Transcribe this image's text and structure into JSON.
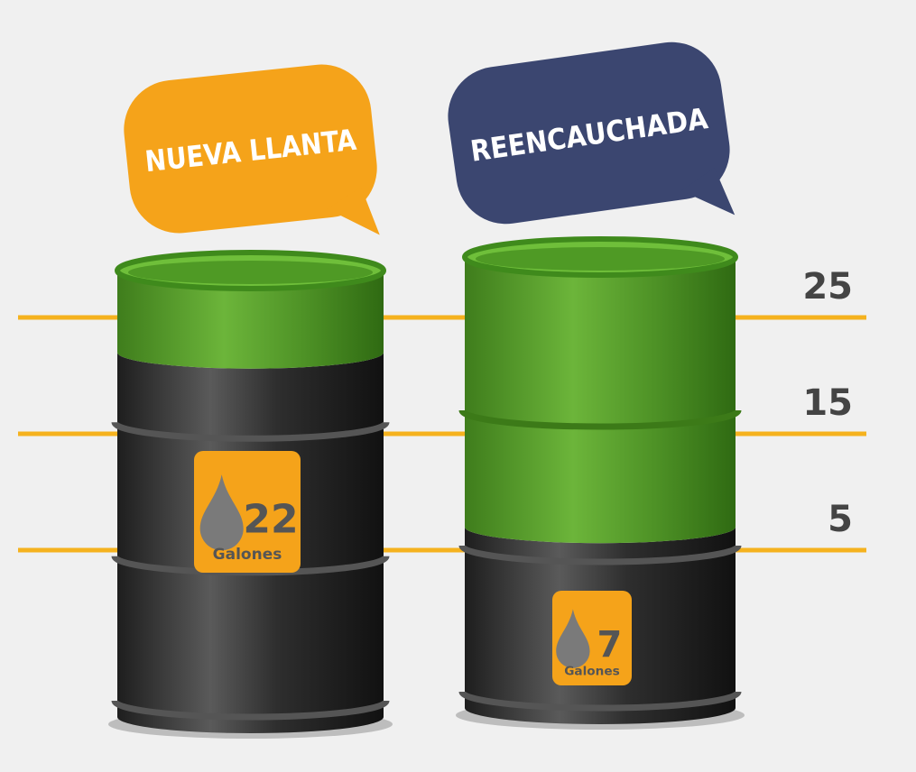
{
  "chart_data": {
    "type": "barrel",
    "categories": [
      "NUEVA LLANTA",
      "REENCAUCHADA"
    ],
    "category_colors": [
      "#f5a31a",
      "#3b4670"
    ],
    "values": [
      22,
      7
    ],
    "unit_label": "Galones",
    "fill_color": "#5ea42e",
    "level_color": "#2b2b2b",
    "line_color": "#f5b21e",
    "ylim": [
      0,
      30
    ],
    "yticks": [
      5,
      15,
      25
    ]
  }
}
